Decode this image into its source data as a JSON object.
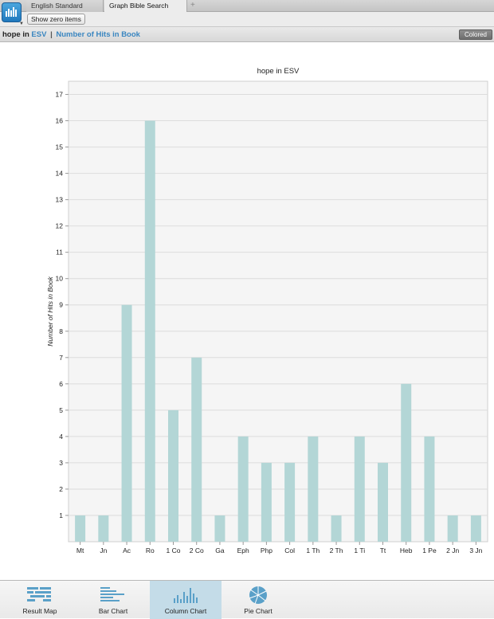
{
  "tabs": {
    "inactive": "English Standard Version",
    "active": "Graph Bible Search Results",
    "add": "+"
  },
  "toolbar": {
    "show_zero": "Show zero items"
  },
  "titlebar": {
    "query": "hope in",
    "version_link": "ESV",
    "separator": "|",
    "metric_link": "Number of Hits in Book",
    "colored": "Colored"
  },
  "colors": {
    "bar": "#b3d6d6",
    "accent": "#3a86c0",
    "active_nav": "#c4dce8"
  },
  "chart_data": {
    "type": "bar",
    "title": "hope in ESV",
    "ylabel": "Number of Hits in Book",
    "xlabel": "",
    "categories": [
      "Mt",
      "Jn",
      "Ac",
      "Ro",
      "1 Co",
      "2 Co",
      "Ga",
      "Eph",
      "Php",
      "Col",
      "1 Th",
      "2 Th",
      "1 Ti",
      "Tt",
      "Heb",
      "1 Pe",
      "2 Jn",
      "3 Jn"
    ],
    "values": [
      1,
      1,
      9,
      16,
      5,
      7,
      1,
      4,
      3,
      3,
      4,
      1,
      4,
      3,
      6,
      4,
      1,
      1
    ],
    "yticks": [
      1,
      2,
      3,
      4,
      5,
      6,
      7,
      8,
      9,
      10,
      11,
      12,
      13,
      14,
      15,
      16,
      17
    ],
    "ylim": [
      0,
      17.5
    ],
    "grid": true,
    "legend": "none"
  },
  "bottom_nav": [
    {
      "label": "Result Map",
      "icon": "result-map-icon",
      "active": false
    },
    {
      "label": "Bar Chart",
      "icon": "bar-chart-icon",
      "active": false
    },
    {
      "label": "Column Chart",
      "icon": "column-chart-icon",
      "active": true
    },
    {
      "label": "Pie Chart",
      "icon": "pie-chart-icon",
      "active": false
    }
  ]
}
